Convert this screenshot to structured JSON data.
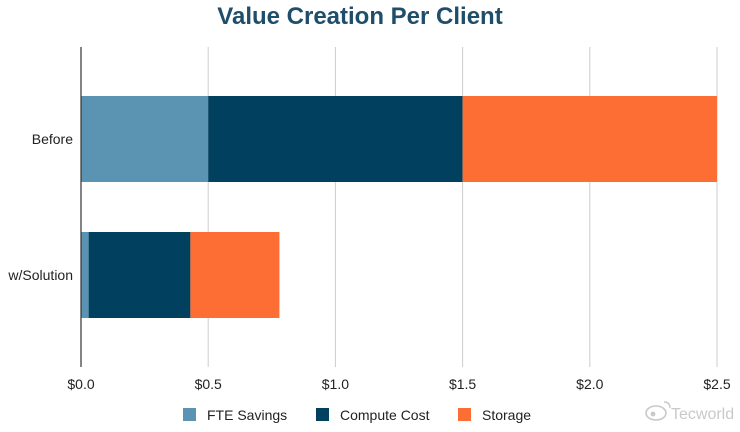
{
  "chart_data": {
    "type": "bar",
    "orientation": "horizontal",
    "stacked": true,
    "title": "Value Creation Per Client",
    "categories": [
      "Before",
      "w/Solution"
    ],
    "series": [
      {
        "name": "FTE Savings",
        "color": "#5b93b2",
        "values": [
          0.5,
          0.03
        ]
      },
      {
        "name": "Compute Cost",
        "color": "#02405f",
        "values": [
          1.0,
          0.4
        ]
      },
      {
        "name": "Storage",
        "color": "#fd6e35",
        "values": [
          1.0,
          0.35
        ]
      }
    ],
    "xlim": [
      0,
      2.5
    ],
    "xticks": [
      {
        "value": 0,
        "label": "$0.0"
      },
      {
        "value": 0.5,
        "label": "$0.5"
      },
      {
        "value": 1.0,
        "label": "$1.0"
      },
      {
        "value": 1.5,
        "label": "$1.5"
      },
      {
        "value": 2.0,
        "label": "$2.0"
      },
      {
        "value": 2.5,
        "label": "$2.5"
      }
    ],
    "grid": "vertical",
    "legend_position": "bottom",
    "xlabel": "",
    "ylabel": ""
  },
  "watermark": {
    "text": "Tecworld",
    "icon": "weibo-icon"
  }
}
